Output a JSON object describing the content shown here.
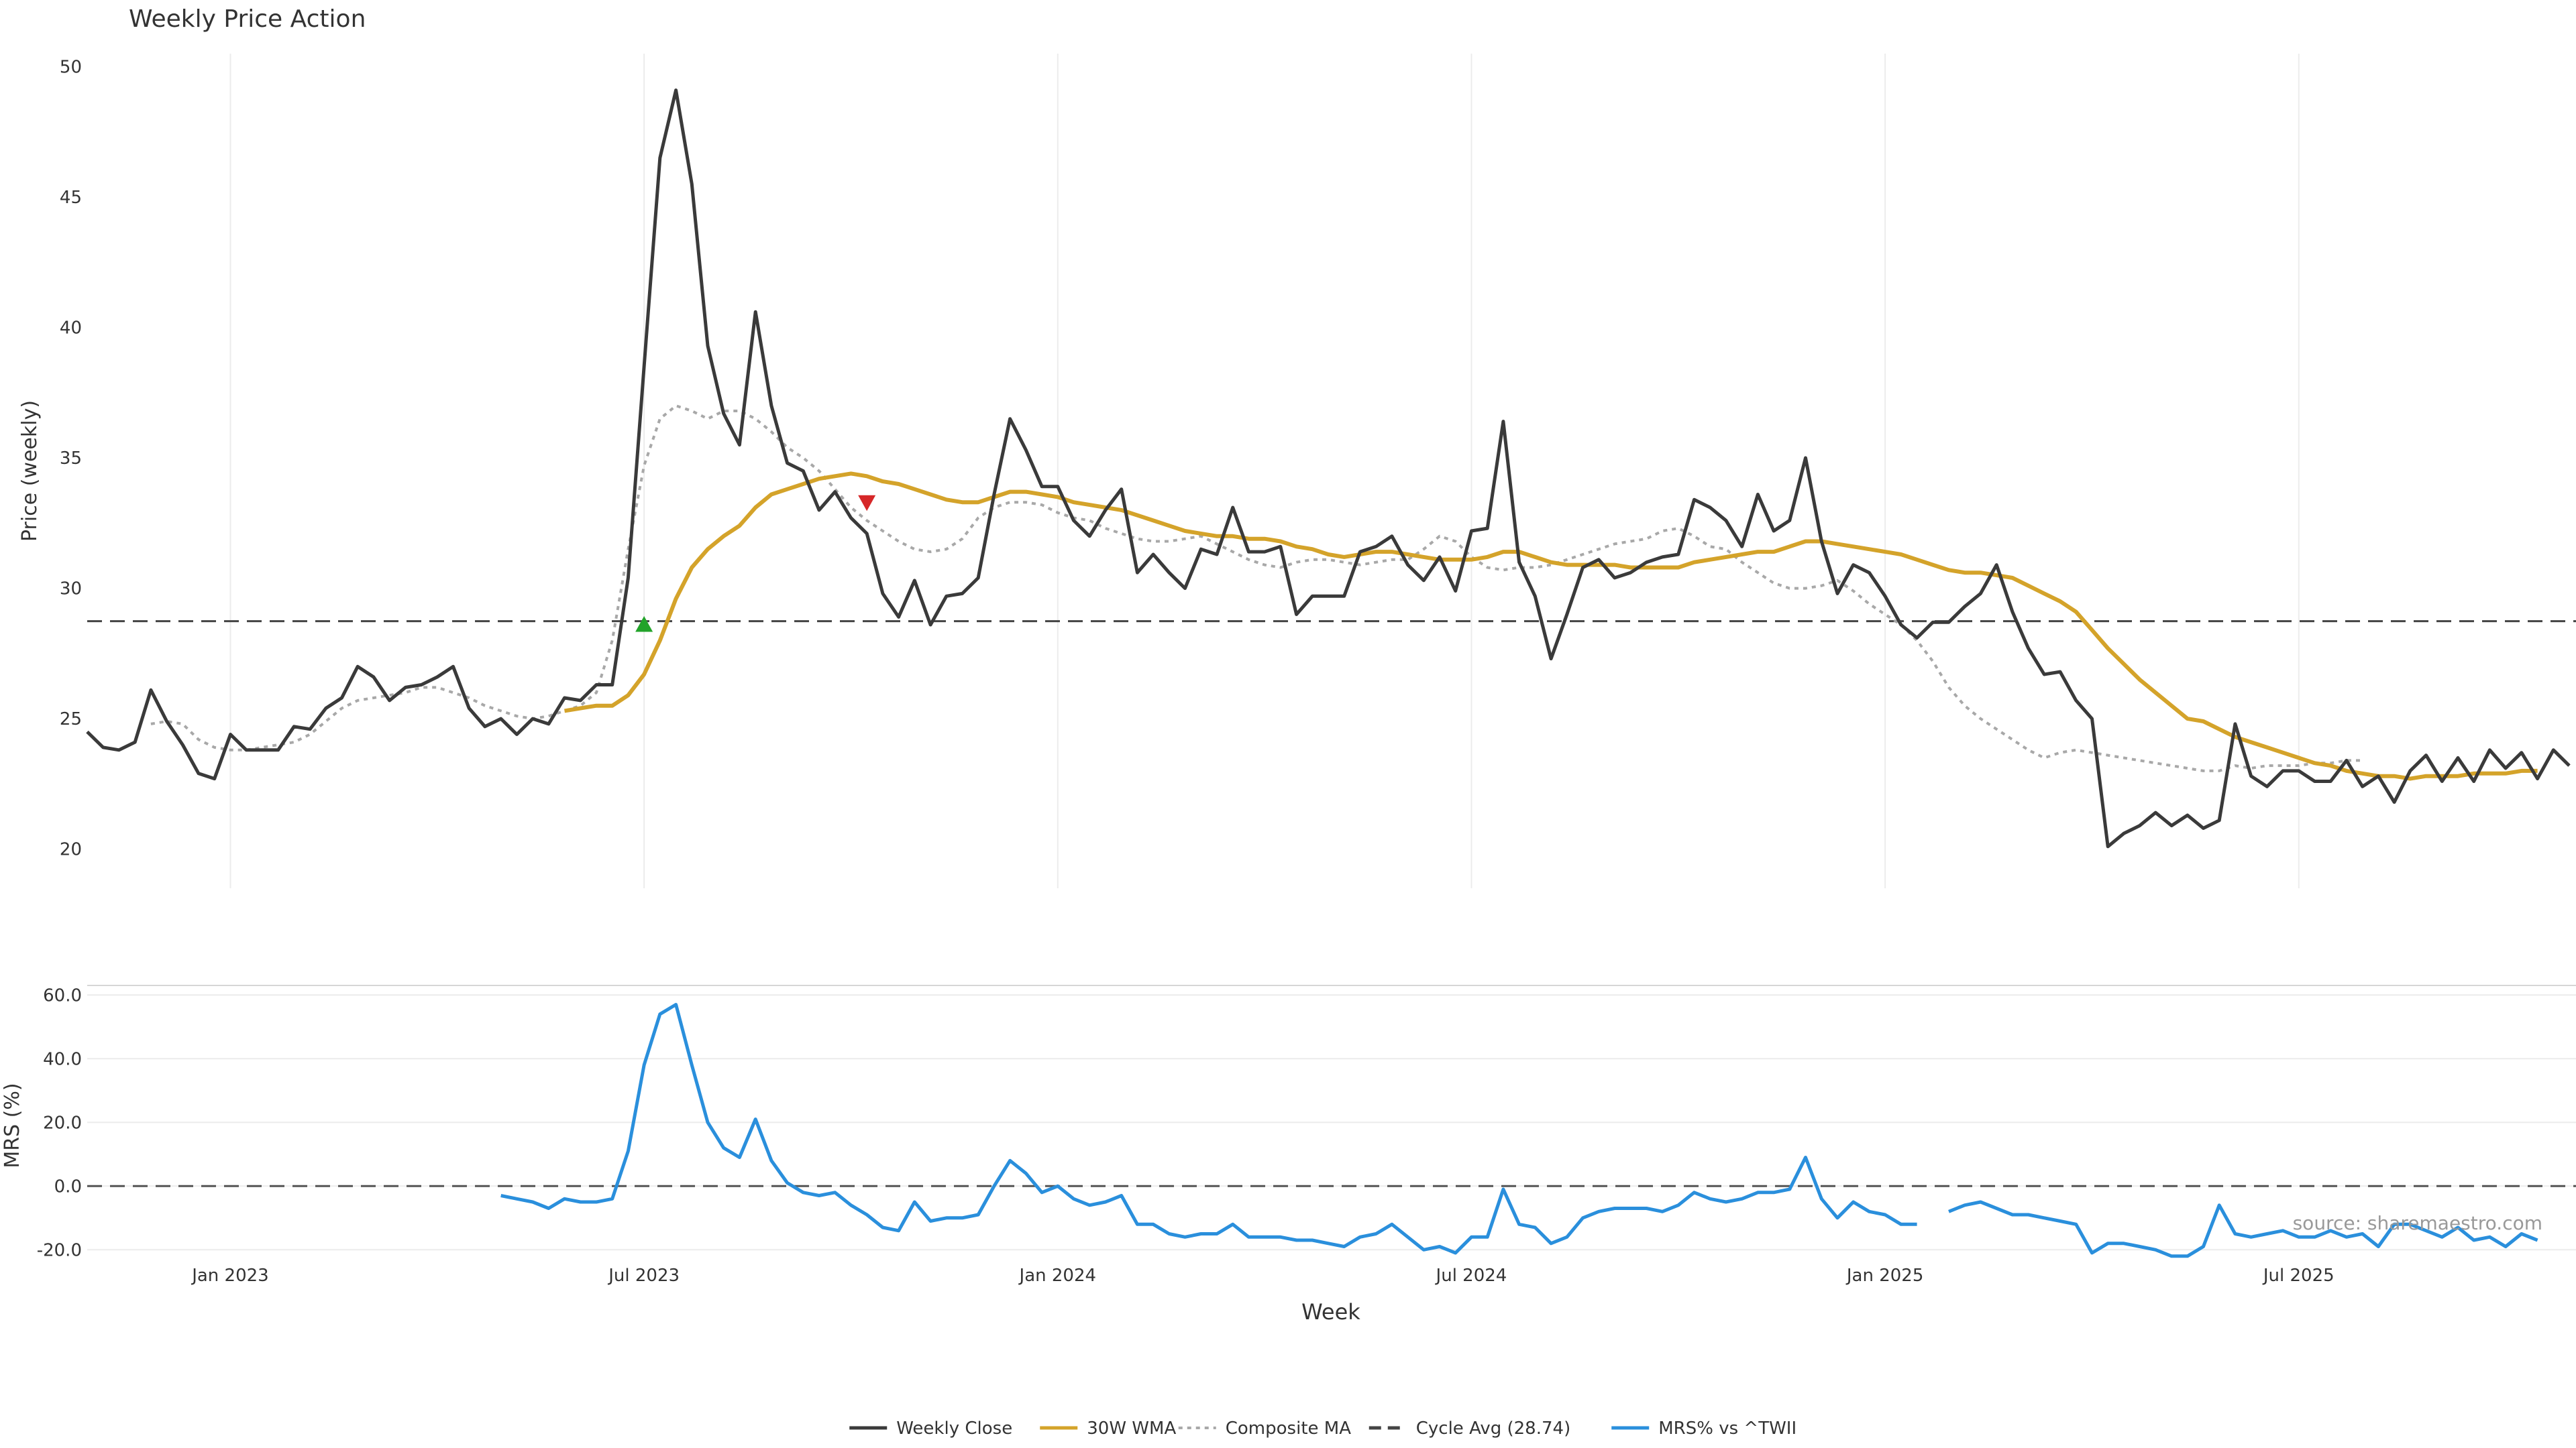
{
  "chart_data": [
    {
      "type": "line",
      "title": "Weekly Price Action",
      "ylabel": "Price (weekly)",
      "ylim": [
        18.5,
        50.5
      ],
      "yticks": [
        20,
        25,
        30,
        35,
        40,
        45,
        50
      ],
      "reference_line": {
        "name": "Cycle Avg (28.74)",
        "value": 28.74
      },
      "x_start": "2022-10-24",
      "series": [
        {
          "name": "Weekly Close",
          "color": "#3a3a3a",
          "values": [
            24.5,
            23.9,
            23.8,
            24.1,
            26.1,
            24.9,
            24.0,
            22.9,
            22.7,
            24.4,
            23.8,
            23.8,
            23.8,
            24.7,
            24.6,
            25.4,
            25.8,
            27.0,
            26.6,
            25.7,
            26.2,
            26.3,
            26.6,
            27.0,
            25.4,
            24.7,
            25.0,
            24.4,
            25.0,
            24.8,
            25.8,
            25.7,
            26.3,
            26.3,
            30.4,
            38.5,
            46.5,
            49.1,
            45.5,
            39.3,
            36.7,
            35.5,
            40.6,
            37.0,
            34.8,
            34.5,
            33.0,
            33.7,
            32.7,
            32.1,
            29.8,
            28.9,
            30.3,
            28.6,
            29.7,
            29.8,
            30.4,
            33.6,
            36.5,
            35.3,
            33.9,
            33.9,
            32.6,
            32.0,
            33.0,
            33.8,
            30.6,
            31.3,
            30.6,
            30.0,
            31.5,
            31.3,
            33.1,
            31.4,
            31.4,
            31.6,
            29.0,
            29.7,
            29.7,
            29.7,
            31.4,
            31.6,
            32.0,
            30.9,
            30.3,
            31.2,
            29.9,
            32.2,
            32.3,
            36.4,
            31.0,
            29.7,
            27.3,
            29.0,
            30.8,
            31.1,
            30.4,
            30.6,
            31.0,
            31.2,
            31.3,
            33.4,
            33.1,
            32.6,
            31.6,
            33.6,
            32.2,
            32.6,
            35.0,
            31.8,
            29.8,
            30.9,
            30.6,
            29.7,
            28.6,
            28.1,
            28.7,
            28.7,
            29.3,
            29.8,
            30.9,
            29.1,
            27.7,
            26.7,
            26.8,
            25.7,
            25.0,
            20.1,
            20.6,
            20.9,
            21.4,
            20.9,
            21.3,
            20.8,
            21.1,
            24.8,
            22.8,
            22.4,
            23.0,
            23.0,
            22.6,
            22.6,
            23.4,
            22.4,
            22.8,
            21.8,
            23.0,
            23.6,
            22.6,
            23.5,
            22.6,
            23.8,
            23.1,
            23.7,
            22.7,
            23.8,
            23.2
          ]
        },
        {
          "name": "30W WMA",
          "color": "#d4a32a",
          "start_index": 30,
          "values": [
            25.3,
            25.4,
            25.5,
            25.5,
            25.9,
            26.7,
            28.0,
            29.6,
            30.8,
            31.5,
            32.0,
            32.4,
            33.1,
            33.6,
            33.8,
            34.0,
            34.2,
            34.3,
            34.4,
            34.3,
            34.1,
            34.0,
            33.8,
            33.6,
            33.4,
            33.3,
            33.3,
            33.5,
            33.7,
            33.7,
            33.6,
            33.5,
            33.3,
            33.2,
            33.1,
            33.0,
            32.8,
            32.6,
            32.4,
            32.2,
            32.1,
            32.0,
            32.0,
            31.9,
            31.9,
            31.8,
            31.6,
            31.5,
            31.3,
            31.2,
            31.3,
            31.4,
            31.4,
            31.3,
            31.2,
            31.1,
            31.1,
            31.1,
            31.2,
            31.4,
            31.4,
            31.2,
            31.0,
            30.9,
            30.9,
            30.9,
            30.9,
            30.8,
            30.8,
            30.8,
            30.8,
            31.0,
            31.1,
            31.2,
            31.3,
            31.4,
            31.4,
            31.6,
            31.8,
            31.8,
            31.7,
            31.6,
            31.5,
            31.4,
            31.3,
            31.1,
            30.9,
            30.7,
            30.6,
            30.6,
            30.5,
            30.4,
            30.1,
            29.8,
            29.5,
            29.1,
            28.4,
            27.7,
            27.1,
            26.5,
            26.0,
            25.5,
            25.0,
            24.9,
            24.6,
            24.3,
            24.1,
            23.9,
            23.7,
            23.5,
            23.3,
            23.2,
            23.0,
            22.9,
            22.8,
            22.8,
            22.7,
            22.8,
            22.8,
            22.8,
            22.9,
            22.9,
            22.9,
            23.0,
            23.0
          ]
        },
        {
          "name": "Composite MA",
          "color": "#a8a8a8",
          "start_index": 4,
          "values": [
            24.8,
            24.9,
            24.8,
            24.2,
            23.9,
            23.8,
            23.8,
            23.9,
            24.0,
            24.1,
            24.4,
            24.9,
            25.4,
            25.7,
            25.8,
            25.9,
            26.0,
            26.2,
            26.2,
            26.0,
            25.8,
            25.5,
            25.3,
            25.1,
            25.0,
            25.1,
            25.3,
            25.5,
            26.0,
            28.0,
            31.5,
            34.7,
            36.5,
            37.0,
            36.8,
            36.5,
            36.8,
            36.8,
            36.5,
            36.0,
            35.4,
            35.0,
            34.5,
            33.8,
            33.1,
            32.6,
            32.2,
            31.8,
            31.5,
            31.4,
            31.5,
            31.9,
            32.7,
            33.1,
            33.3,
            33.3,
            33.2,
            32.9,
            32.7,
            32.6,
            32.3,
            32.1,
            31.9,
            31.8,
            31.8,
            31.9,
            32.0,
            31.7,
            31.4,
            31.1,
            30.9,
            30.8,
            31.0,
            31.1,
            31.1,
            31.0,
            30.9,
            31.0,
            31.1,
            31.1,
            31.5,
            32.0,
            31.8,
            31.2,
            30.8,
            30.7,
            30.8,
            30.8,
            30.9,
            31.1,
            31.3,
            31.5,
            31.7,
            31.8,
            31.9,
            32.2,
            32.3,
            32.0,
            31.6,
            31.5,
            31.0,
            30.6,
            30.2,
            30.0,
            30.0,
            30.1,
            30.3,
            29.9,
            29.4,
            29.0,
            28.6,
            28.0,
            27.2,
            26.2,
            25.5,
            25.0,
            24.6,
            24.2,
            23.8,
            23.5,
            23.7,
            23.8,
            23.7,
            23.6,
            23.5,
            23.4,
            23.3,
            23.2,
            23.1,
            23.0,
            23.0,
            23.2,
            23.1,
            23.2,
            23.2,
            23.2,
            23.3,
            23.3,
            23.4,
            23.4
          ]
        }
      ],
      "markers": [
        {
          "type": "buy",
          "symbol": "triangle-up",
          "color": "#22a32a",
          "index": 35,
          "value": 28.6
        },
        {
          "type": "sell",
          "symbol": "triangle-down",
          "color": "#d62728",
          "index": 49,
          "value": 33.3
        }
      ]
    },
    {
      "type": "line",
      "ylabel": "MRS (%)",
      "ylim": [
        -25,
        63
      ],
      "yticks": [
        -20.0,
        0.0,
        20.0,
        40.0,
        60.0
      ],
      "reference_line": {
        "value": 0
      },
      "series": [
        {
          "name": "MRS% vs ^TWII",
          "color": "#2a8fdc",
          "start_index": 26,
          "values": [
            -3,
            -4,
            -5,
            -7,
            -4,
            -5,
            -5,
            -4,
            11,
            38,
            54,
            57,
            38,
            20,
            12,
            9,
            21,
            8,
            1,
            -2,
            -3,
            -2,
            -6,
            -9,
            -13,
            -14,
            -5,
            -11,
            -10,
            -10,
            -9,
            0,
            8,
            4,
            -2,
            0,
            -4,
            -6,
            -5,
            -3,
            -12,
            -12,
            -15,
            -16,
            -15,
            -15,
            -12,
            -16,
            -16,
            -16,
            -17,
            -17,
            -18,
            -19,
            -16,
            -15,
            -12,
            -16,
            -20,
            -19,
            -21,
            -16,
            -16,
            -1,
            -12,
            -13,
            -18,
            -16,
            -10,
            -8,
            -7,
            -7,
            -7,
            -8,
            -6,
            -2,
            -4,
            -5,
            -4,
            -2,
            -2,
            -1,
            9,
            -4,
            -10,
            -5,
            -8,
            -9,
            -12,
            -12,
            null,
            -8,
            -6,
            -5,
            -7,
            -9,
            -9,
            -10,
            -11,
            -12,
            -21,
            -18,
            -18,
            -19,
            -20,
            -22,
            -22,
            -19,
            -6,
            -15,
            -16,
            -15,
            -14,
            -16,
            -16,
            -14,
            -16,
            -15,
            -19,
            -12,
            -12,
            -14,
            -16,
            -13,
            -17,
            -16,
            -19,
            -15,
            -17
          ]
        }
      ]
    }
  ],
  "x_axis": {
    "xlabel": "Week",
    "ticks": [
      {
        "label": "Jan 2023",
        "index": 9
      },
      {
        "label": "Jul 2023",
        "index": 35
      },
      {
        "label": "Jan 2024",
        "index": 61
      },
      {
        "label": "Jul 2024",
        "index": 87
      },
      {
        "label": "Jan 2025",
        "index": 113
      },
      {
        "label": "Jul 2025",
        "index": 139
      }
    ]
  },
  "legend": {
    "position": "bottom-center",
    "items": [
      {
        "label": "Weekly Close",
        "style": "solid",
        "color": "#3a3a3a"
      },
      {
        "label": "30W WMA",
        "style": "solid",
        "color": "#d4a32a"
      },
      {
        "label": "Composite MA",
        "style": "dotted",
        "color": "#a8a8a8"
      },
      {
        "label": "Cycle Avg (28.74)",
        "style": "dashed",
        "color": "#444444"
      },
      {
        "label": "MRS% vs ^TWII",
        "style": "solid",
        "color": "#2a8fdc"
      }
    ]
  },
  "source_text": "source: sharemaestro.com"
}
